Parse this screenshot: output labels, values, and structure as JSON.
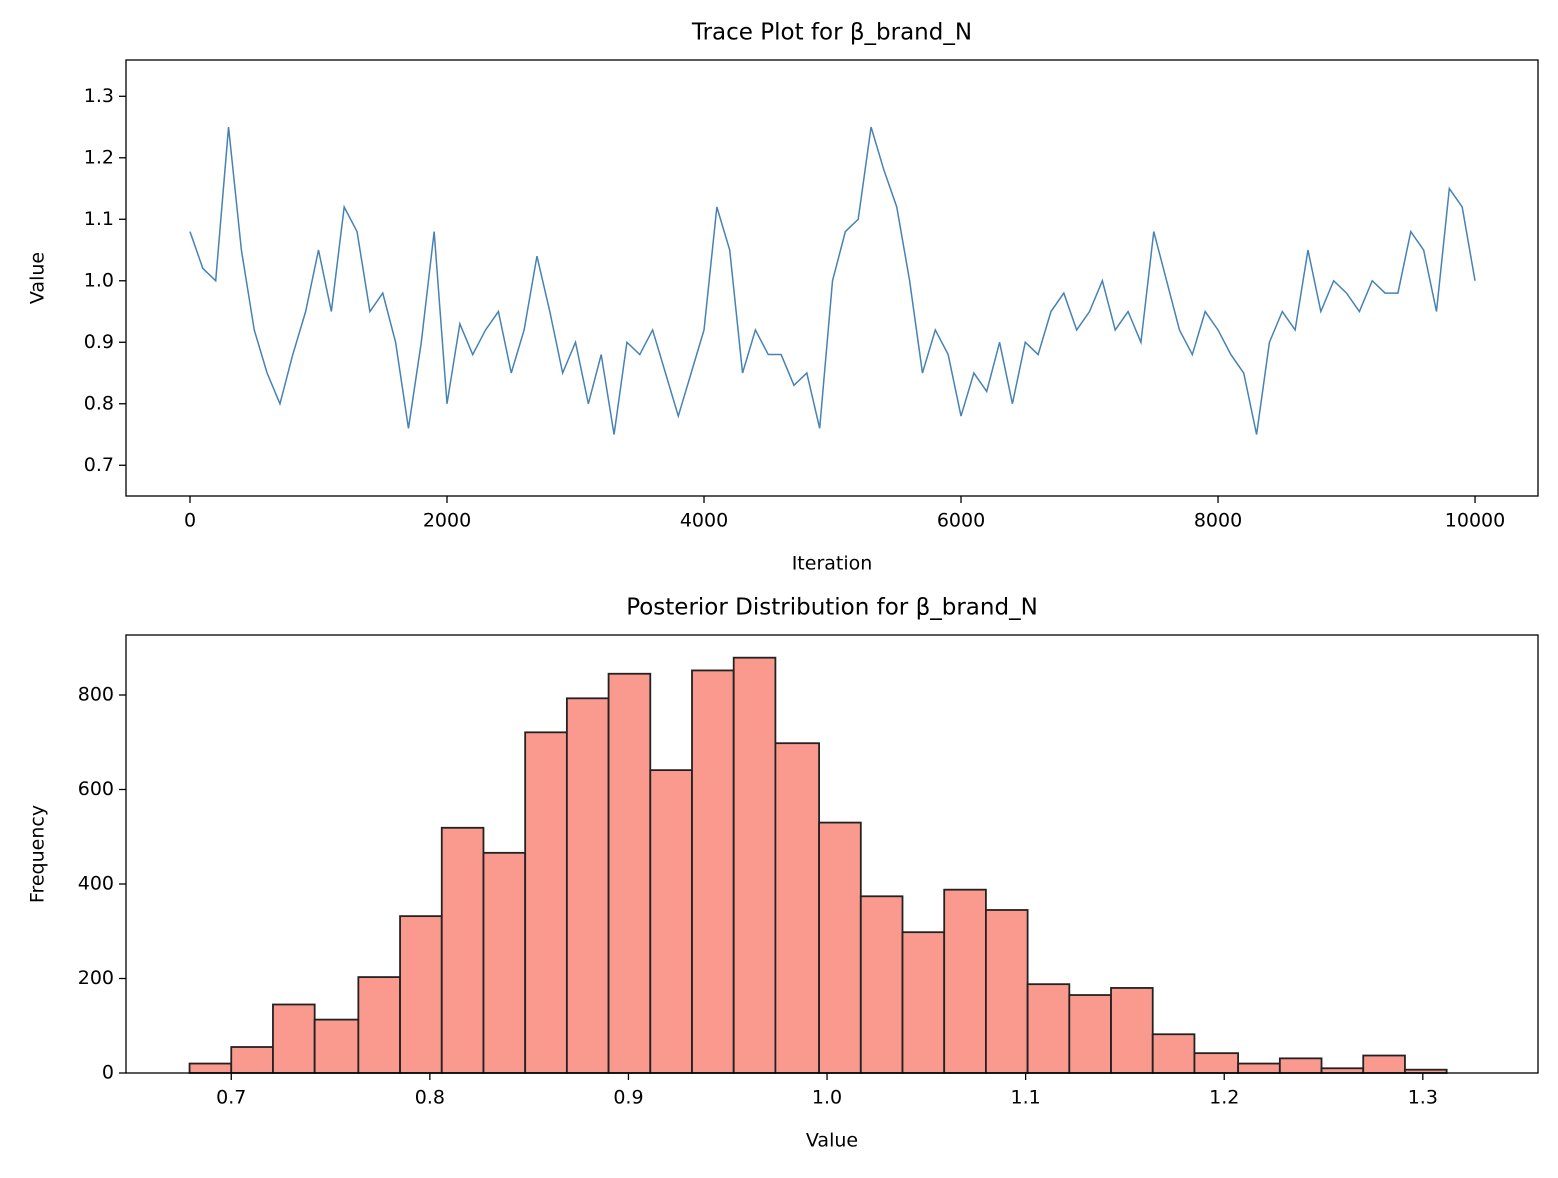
{
  "chart_data": [
    {
      "type": "line",
      "title": "Trace Plot for β_brand_N",
      "xlabel": "Iteration",
      "ylabel": "Value",
      "color": "#4682b4",
      "x": [
        0,
        100,
        200,
        300,
        400,
        500,
        600,
        700,
        800,
        900,
        1000,
        1100,
        1200,
        1300,
        1400,
        1500,
        1600,
        1700,
        1800,
        1900,
        2000,
        2100,
        2200,
        2300,
        2400,
        2500,
        2600,
        2700,
        2800,
        2900,
        3000,
        3100,
        3200,
        3300,
        3400,
        3500,
        3600,
        3700,
        3800,
        3900,
        4000,
        4100,
        4200,
        4300,
        4400,
        4500,
        4600,
        4700,
        4800,
        4900,
        5000,
        5100,
        5200,
        5300,
        5400,
        5500,
        5600,
        5700,
        5800,
        5900,
        6000,
        6100,
        6200,
        6300,
        6400,
        6500,
        6600,
        6700,
        6800,
        6900,
        7000,
        7100,
        7200,
        7300,
        7400,
        7500,
        7600,
        7700,
        7800,
        7900,
        8000,
        8100,
        8200,
        8300,
        8400,
        8500,
        8600,
        8700,
        8800,
        8900,
        9000,
        9100,
        9200,
        9300,
        9400,
        9500,
        9600,
        9700,
        9800,
        9900,
        10000
      ],
      "values": [
        1.08,
        1.02,
        1.0,
        1.25,
        1.05,
        0.92,
        0.85,
        0.8,
        0.88,
        0.95,
        1.05,
        0.95,
        1.12,
        1.08,
        0.95,
        0.98,
        0.9,
        0.76,
        0.9,
        1.08,
        0.8,
        0.93,
        0.88,
        0.92,
        0.95,
        0.85,
        0.92,
        1.04,
        0.95,
        0.85,
        0.9,
        0.8,
        0.88,
        0.75,
        0.9,
        0.88,
        0.92,
        0.85,
        0.78,
        0.85,
        0.92,
        1.12,
        1.05,
        0.85,
        0.92,
        0.88,
        0.88,
        0.83,
        0.85,
        0.76,
        1.0,
        1.08,
        1.1,
        1.25,
        1.18,
        1.12,
        1.0,
        0.85,
        0.92,
        0.88,
        0.78,
        0.85,
        0.82,
        0.9,
        0.8,
        0.9,
        0.88,
        0.95,
        0.98,
        0.92,
        0.95,
        1.0,
        0.92,
        0.95,
        0.9,
        1.08,
        1.0,
        0.92,
        0.88,
        0.95,
        0.92,
        0.88,
        0.85,
        0.75,
        0.9,
        0.95,
        0.92,
        1.05,
        0.95,
        1.0,
        0.98,
        0.95,
        1.0,
        0.98,
        0.98,
        1.08,
        1.05,
        0.95,
        1.15,
        1.12,
        1.0
      ],
      "xlim": [
        -498,
        10490
      ],
      "ylim": [
        0.65,
        1.359
      ],
      "xticks": [
        0,
        2000,
        4000,
        6000,
        8000,
        10000
      ],
      "yticks": [
        0.7,
        0.8,
        0.9,
        {
          "value": 1,
          "label": "1.0"
        },
        1.1,
        1.2,
        1.3
      ]
    },
    {
      "type": "histogram",
      "title": "Posterior Distribution for β_brand_N",
      "xlabel": "Value",
      "ylabel": "Frequency",
      "color": "#fa9a8f",
      "edgecolor": "#222222",
      "bins": [
        0.679,
        0.7,
        0.721,
        0.742,
        0.764,
        0.785,
        0.806,
        0.827,
        0.848,
        0.869,
        0.89,
        0.911,
        0.932,
        0.953,
        0.974,
        0.996,
        1.017,
        1.038,
        1.059,
        1.08,
        1.101,
        1.122,
        1.143,
        1.164,
        1.185,
        1.207,
        1.228,
        1.249,
        1.27,
        1.291,
        1.312
      ],
      "values": [
        20,
        55,
        145,
        113,
        203,
        332,
        519,
        466,
        721,
        793,
        845,
        641,
        852,
        879,
        698,
        530,
        374,
        298,
        388,
        345,
        188,
        165,
        180,
        82,
        42,
        20,
        31,
        10,
        37,
        7
      ],
      "xlim": [
        0.647,
        1.358
      ],
      "ylim": [
        0,
        927
      ],
      "xticks": [
        0.7,
        0.8,
        0.9,
        {
          "value": 1,
          "label": "1.0"
        },
        1.1,
        1.2,
        1.3
      ],
      "yticks": [
        0,
        200,
        400,
        600,
        800
      ]
    }
  ]
}
